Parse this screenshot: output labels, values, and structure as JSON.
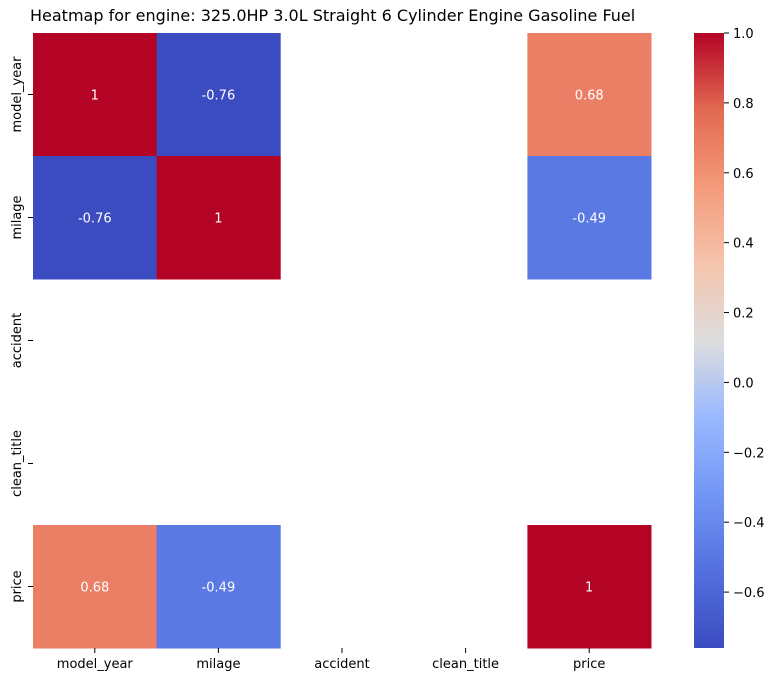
{
  "chart_data": {
    "type": "heatmap",
    "title": "Heatmap for engine: 325.0HP 3.0L Straight 6 Cylinder Engine Gasoline Fuel",
    "x_labels": [
      "model_year",
      "milage",
      "accident",
      "clean_title",
      "price"
    ],
    "y_labels": [
      "model_year",
      "milage",
      "accident",
      "clean_title",
      "price"
    ],
    "values": [
      [
        1,
        -0.76,
        null,
        null,
        0.68
      ],
      [
        -0.76,
        1,
        null,
        null,
        -0.49
      ],
      [
        null,
        null,
        null,
        null,
        null
      ],
      [
        null,
        null,
        null,
        null,
        null
      ],
      [
        0.68,
        -0.49,
        null,
        null,
        1
      ]
    ],
    "annotations": [
      [
        "1",
        "-0.76",
        "",
        "",
        "0.68"
      ],
      [
        "-0.76",
        "1",
        "",
        "",
        "-0.49"
      ],
      [
        "",
        "",
        "",
        "",
        ""
      ],
      [
        "",
        "",
        "",
        "",
        ""
      ],
      [
        "0.68",
        "-0.49",
        "",
        "",
        "1"
      ]
    ],
    "colormap": "coolwarm",
    "colorbar": {
      "vmin": -0.76,
      "vmax": 1.0,
      "ticks": [
        1.0,
        0.8,
        0.6,
        0.4,
        0.2,
        0.0,
        -0.2,
        -0.4,
        -0.6
      ],
      "tick_labels": [
        "1.0",
        "0.8",
        "0.6",
        "0.4",
        "0.2",
        "0.0",
        "−0.2",
        "−0.4",
        "−0.6"
      ]
    }
  }
}
